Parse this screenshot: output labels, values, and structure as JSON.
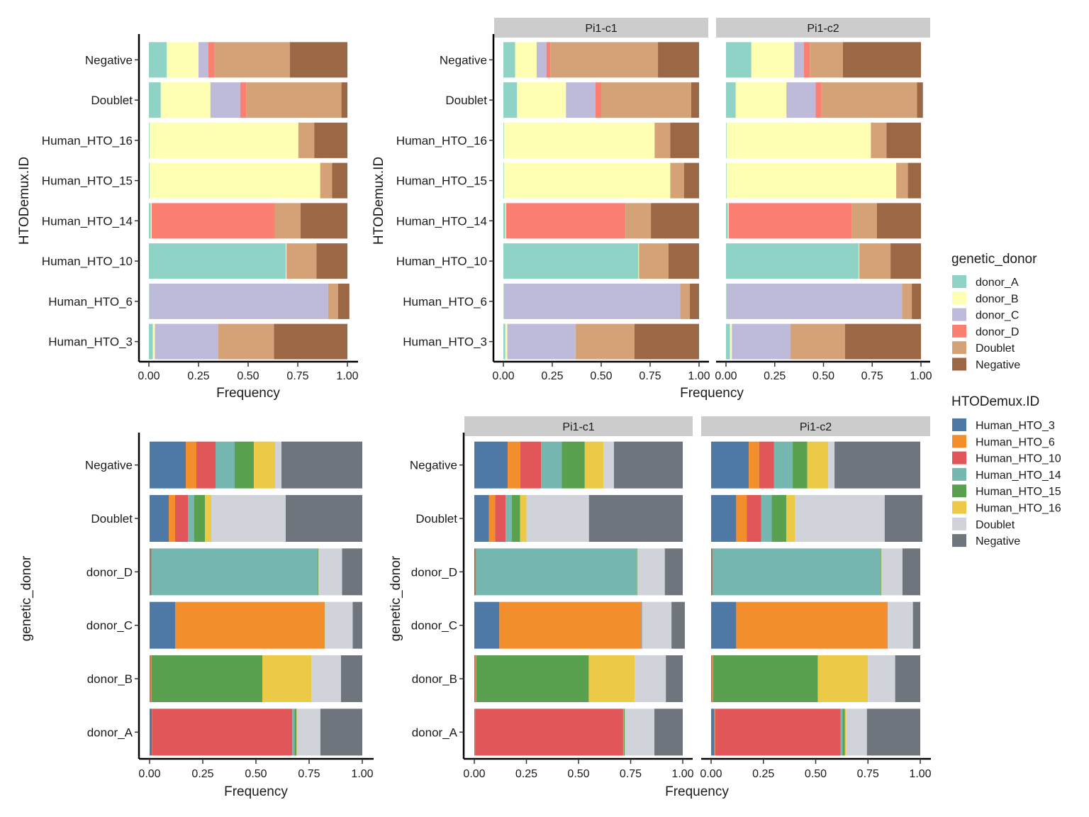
{
  "legends": [
    {
      "title": "genetic_donor",
      "items": [
        {
          "label": "donor_A",
          "color": "#8fd3c7"
        },
        {
          "label": "donor_B",
          "color": "#ffffb3"
        },
        {
          "label": "donor_C",
          "color": "#bebada"
        },
        {
          "label": "donor_D",
          "color": "#fb8072"
        },
        {
          "label": "Doublet",
          "color": "#d4a276"
        },
        {
          "label": "Negative",
          "color": "#9c6745"
        }
      ]
    },
    {
      "title": "HTODemux.ID",
      "items": [
        {
          "label": "Human_HTO_3",
          "color": "#4e79a7"
        },
        {
          "label": "Human_HTO_6",
          "color": "#f28e2b"
        },
        {
          "label": "Human_HTO_10",
          "color": "#e15759"
        },
        {
          "label": "Human_HTO_14",
          "color": "#76b7b2"
        },
        {
          "label": "Human_HTO_15",
          "color": "#59a14f"
        },
        {
          "label": "Human_HTO_16",
          "color": "#edc948"
        },
        {
          "label": "Doublet",
          "color": "#d0d4da"
        },
        {
          "label": "Negative",
          "color": "#6e757d"
        }
      ]
    }
  ],
  "chart_data": [
    {
      "type": "bar",
      "stacked": true,
      "orientation": "horizontal",
      "xlabel": "Frequency",
      "ylabel": "HTODemux.ID",
      "xlim": [
        0,
        1
      ],
      "xticks": [
        "0.00",
        "0.25",
        "0.50",
        "0.75",
        "1.00"
      ],
      "legend": 0,
      "facets": [
        {
          "label": "",
          "categories": [
            "Negative",
            "Doublet",
            "Human_HTO_16",
            "Human_HTO_15",
            "Human_HTO_14",
            "Human_HTO_10",
            "Human_HTO_6",
            "Human_HTO_3"
          ],
          "series": [
            {
              "name": "donor_A",
              "values": [
                0.09,
                0.06,
                0.003,
                0.003,
                0.01,
                0.69,
                0.002,
                0.02
              ]
            },
            {
              "name": "donor_B",
              "values": [
                0.16,
                0.25,
                0.75,
                0.86,
                0.004,
                0.003,
                0.001,
                0.01
              ]
            },
            {
              "name": "donor_C",
              "values": [
                0.05,
                0.15,
                0.0,
                0.0,
                0.0,
                0.0,
                0.9,
                0.32
              ]
            },
            {
              "name": "donor_D",
              "values": [
                0.03,
                0.03,
                0.0,
                0.0,
                0.62,
                0.001,
                0.0,
                0.0
              ]
            },
            {
              "name": "Doublet",
              "values": [
                0.38,
                0.48,
                0.08,
                0.06,
                0.13,
                0.15,
                0.05,
                0.28
              ]
            },
            {
              "name": "Negative",
              "values": [
                0.29,
                0.03,
                0.167,
                0.077,
                0.236,
                0.156,
                0.057,
                0.37
              ]
            }
          ]
        }
      ]
    },
    {
      "type": "bar",
      "stacked": true,
      "orientation": "horizontal",
      "xlabel": "Frequency",
      "ylabel": "HTODemux.ID",
      "xlim": [
        0,
        1
      ],
      "xticks": [
        "0.00",
        "0.25",
        "0.50",
        "0.75",
        "1.00"
      ],
      "legend": 0,
      "facets": [
        {
          "label": "Pi1-c1",
          "categories": [
            "Negative",
            "Doublet",
            "Human_HTO_16",
            "Human_HTO_15",
            "Human_HTO_14",
            "Human_HTO_10",
            "Human_HTO_6",
            "Human_HTO_3"
          ],
          "series": [
            {
              "name": "donor_A",
              "values": [
                0.06,
                0.07,
                0.003,
                0.003,
                0.01,
                0.69,
                0.002,
                0.01
              ]
            },
            {
              "name": "donor_B",
              "values": [
                0.11,
                0.25,
                0.77,
                0.85,
                0.004,
                0.003,
                0.001,
                0.01
              ]
            },
            {
              "name": "donor_C",
              "values": [
                0.05,
                0.15,
                0.0,
                0.0,
                0.0,
                0.0,
                0.9,
                0.35
              ]
            },
            {
              "name": "donor_D",
              "values": [
                0.02,
                0.03,
                0.0,
                0.0,
                0.61,
                0.001,
                0.0,
                0.0
              ]
            },
            {
              "name": "Doublet",
              "values": [
                0.55,
                0.46,
                0.08,
                0.07,
                0.13,
                0.15,
                0.05,
                0.3
              ]
            },
            {
              "name": "Negative",
              "values": [
                0.21,
                0.04,
                0.147,
                0.077,
                0.246,
                0.156,
                0.047,
                0.33
              ]
            }
          ]
        },
        {
          "label": "Pi1-c2",
          "categories": [
            "Negative",
            "Doublet",
            "Human_HTO_16",
            "Human_HTO_15",
            "Human_HTO_14",
            "Human_HTO_10",
            "Human_HTO_6",
            "Human_HTO_3"
          ],
          "series": [
            {
              "name": "donor_A",
              "values": [
                0.13,
                0.05,
                0.003,
                0.003,
                0.01,
                0.68,
                0.002,
                0.02
              ]
            },
            {
              "name": "donor_B",
              "values": [
                0.22,
                0.26,
                0.74,
                0.87,
                0.004,
                0.003,
                0.001,
                0.01
              ]
            },
            {
              "name": "donor_C",
              "values": [
                0.05,
                0.15,
                0.0,
                0.0,
                0.0,
                0.0,
                0.9,
                0.3
              ]
            },
            {
              "name": "donor_D",
              "values": [
                0.03,
                0.03,
                0.0,
                0.0,
                0.63,
                0.001,
                0.0,
                0.0
              ]
            },
            {
              "name": "Doublet",
              "values": [
                0.17,
                0.49,
                0.08,
                0.06,
                0.13,
                0.16,
                0.05,
                0.28
              ]
            },
            {
              "name": "Negative",
              "values": [
                0.4,
                0.03,
                0.177,
                0.067,
                0.226,
                0.156,
                0.047,
                0.39
              ]
            }
          ]
        }
      ]
    },
    {
      "type": "bar",
      "stacked": true,
      "orientation": "horizontal",
      "xlabel": "Frequency",
      "ylabel": "genetic_donor",
      "xlim": [
        0,
        1
      ],
      "xticks": [
        "0.00",
        "0.25",
        "0.50",
        "0.75",
        "1.00"
      ],
      "legend": 1,
      "facets": [
        {
          "label": "",
          "categories": [
            "Negative",
            "Doublet",
            "donor_D",
            "donor_C",
            "donor_B",
            "donor_A"
          ],
          "series": [
            {
              "name": "Human_HTO_3",
              "values": [
                0.17,
                0.09,
                0.005,
                0.12,
                0.003,
                0.01
              ]
            },
            {
              "name": "Human_HTO_6",
              "values": [
                0.05,
                0.03,
                0.003,
                0.7,
                0.002,
                0.001
              ]
            },
            {
              "name": "Human_HTO_10",
              "values": [
                0.09,
                0.06,
                0.002,
                0.001,
                0.003,
                0.66
              ]
            },
            {
              "name": "Human_HTO_14",
              "values": [
                0.09,
                0.03,
                0.78,
                0.001,
                0.002,
                0.01
              ]
            },
            {
              "name": "Human_HTO_15",
              "values": [
                0.09,
                0.05,
                0.003,
                0.002,
                0.52,
                0.01
              ]
            },
            {
              "name": "Human_HTO_16",
              "values": [
                0.1,
                0.03,
                0.002,
                0.001,
                0.23,
                0.002
              ]
            },
            {
              "name": "Doublet",
              "values": [
                0.03,
                0.35,
                0.11,
                0.13,
                0.14,
                0.11
              ]
            },
            {
              "name": "Negative",
              "values": [
                0.38,
                0.36,
                0.095,
                0.045,
                0.1,
                0.197
              ]
            }
          ]
        }
      ]
    },
    {
      "type": "bar",
      "stacked": true,
      "orientation": "horizontal",
      "xlabel": "Frequency",
      "ylabel": "genetic_donor",
      "xlim": [
        0,
        1
      ],
      "xticks": [
        "0.00",
        "0.25",
        "0.50",
        "0.75",
        "1.00"
      ],
      "legend": 1,
      "facets": [
        {
          "label": "Pi1-c1",
          "categories": [
            "Negative",
            "Doublet",
            "donor_D",
            "donor_C",
            "donor_B",
            "donor_A"
          ],
          "series": [
            {
              "name": "Human_HTO_3",
              "values": [
                0.16,
                0.07,
                0.005,
                0.12,
                0.003,
                0.003
              ]
            },
            {
              "name": "Human_HTO_6",
              "values": [
                0.06,
                0.03,
                0.003,
                0.68,
                0.002,
                0.001
              ]
            },
            {
              "name": "Human_HTO_10",
              "values": [
                0.1,
                0.05,
                0.002,
                0.001,
                0.002,
                0.71
              ]
            },
            {
              "name": "Human_HTO_14",
              "values": [
                0.1,
                0.03,
                0.77,
                0.002,
                0.002,
                0.003
              ]
            },
            {
              "name": "Human_HTO_15",
              "values": [
                0.11,
                0.04,
                0.002,
                0.002,
                0.54,
                0.005
              ]
            },
            {
              "name": "Human_HTO_16",
              "values": [
                0.09,
                0.03,
                0.002,
                0.001,
                0.22,
                0.002
              ]
            },
            {
              "name": "Doublet",
              "values": [
                0.05,
                0.3,
                0.13,
                0.14,
                0.15,
                0.14
              ]
            },
            {
              "name": "Negative",
              "values": [
                0.33,
                0.45,
                0.086,
                0.064,
                0.081,
                0.136
              ]
            }
          ]
        },
        {
          "label": "Pi1-c2",
          "categories": [
            "Negative",
            "Doublet",
            "donor_D",
            "donor_C",
            "donor_B",
            "donor_A"
          ],
          "series": [
            {
              "name": "Human_HTO_3",
              "values": [
                0.18,
                0.12,
                0.005,
                0.12,
                0.003,
                0.015
              ]
            },
            {
              "name": "Human_HTO_6",
              "values": [
                0.05,
                0.05,
                0.003,
                0.72,
                0.002,
                0.004
              ]
            },
            {
              "name": "Human_HTO_10",
              "values": [
                0.07,
                0.07,
                0.002,
                0.001,
                0.003,
                0.6
              ]
            },
            {
              "name": "Human_HTO_14",
              "values": [
                0.09,
                0.05,
                0.8,
                0.001,
                0.002,
                0.01
              ]
            },
            {
              "name": "Human_HTO_15",
              "values": [
                0.07,
                0.07,
                0.003,
                0.002,
                0.5,
                0.01
              ]
            },
            {
              "name": "Human_HTO_16",
              "values": [
                0.1,
                0.04,
                0.002,
                0.001,
                0.24,
                0.006
              ]
            },
            {
              "name": "Doublet",
              "values": [
                0.03,
                0.43,
                0.1,
                0.12,
                0.13,
                0.1
              ]
            },
            {
              "name": "Negative",
              "values": [
                0.41,
                0.18,
                0.085,
                0.035,
                0.12,
                0.255
              ]
            }
          ]
        }
      ]
    }
  ]
}
